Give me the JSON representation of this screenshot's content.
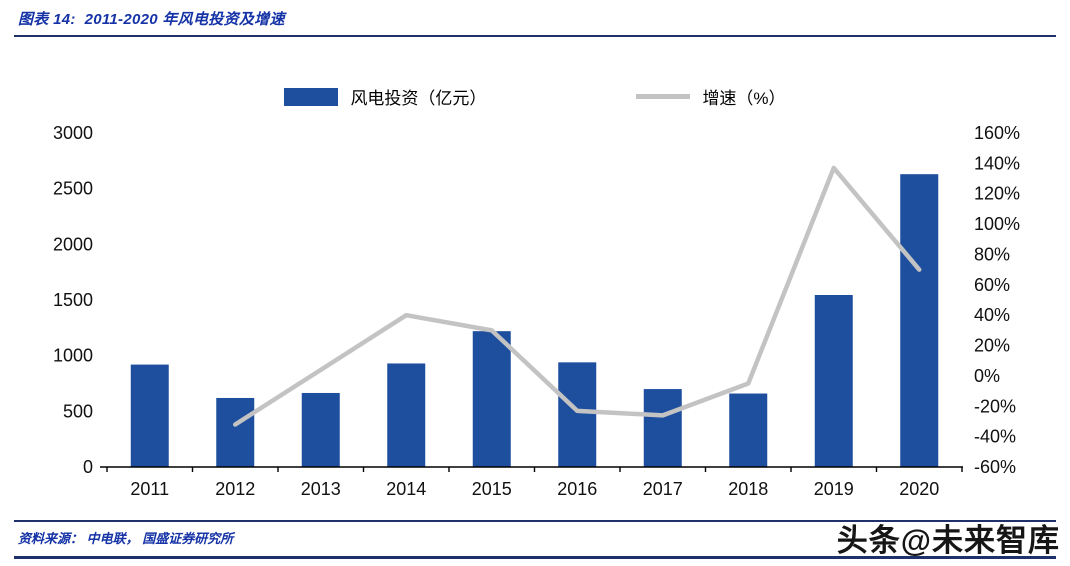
{
  "header": {
    "title": "图表 14:  2011-2020 年风电投资及增速"
  },
  "footer": {
    "source": "资料来源： 中电联， 国盛证券研究所",
    "watermark": "头条@未来智库"
  },
  "colors": {
    "bar_blue": "#1d4f9e",
    "line_gray": "#c3c3c3",
    "heading_blue": "#1533a6",
    "rule_navy": "#20306b",
    "axis_text": "#111111"
  },
  "chart_data": {
    "type": "bar",
    "subtype": "bar-and-line-dual-axis",
    "title": "2011-2020 年风电投资及增速",
    "categories": [
      "2011",
      "2012",
      "2013",
      "2014",
      "2015",
      "2016",
      "2017",
      "2018",
      "2019",
      "2020"
    ],
    "series": [
      {
        "name": "风电投资（亿元）",
        "type": "bar",
        "axis": "left",
        "color": "#1d4f9e",
        "values": [
          920,
          620,
          665,
          930,
          1220,
          940,
          700,
          660,
          1545,
          2630
        ]
      },
      {
        "name": "增速（%）",
        "type": "line",
        "axis": "right",
        "color": "#c3c3c3",
        "values": [
          null,
          -32,
          4,
          40,
          30,
          -23,
          -26,
          -5,
          137,
          70
        ]
      }
    ],
    "left_axis": {
      "min": 0,
      "max": 3000,
      "ticks": [
        0,
        500,
        1000,
        1500,
        2000,
        2500,
        3000
      ]
    },
    "right_axis": {
      "min": -60,
      "max": 160,
      "ticks": [
        160,
        140,
        120,
        100,
        80,
        60,
        40,
        20,
        0,
        -20,
        -40,
        -60
      ],
      "suffix": "%"
    },
    "grid": false,
    "legend_position": "top-center"
  }
}
